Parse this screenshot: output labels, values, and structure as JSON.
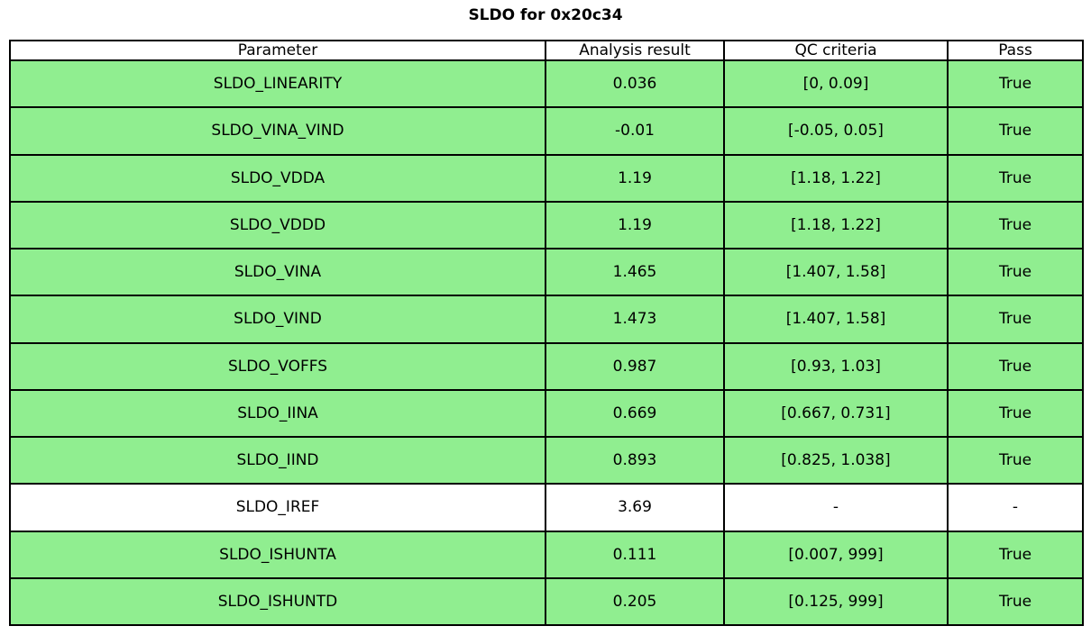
{
  "title": "SLDO for 0x20c34",
  "colors": {
    "pass_green": "#90EE90",
    "border": "#000000",
    "text": "#000000",
    "background": "#ffffff"
  },
  "chart_data": {
    "type": "table",
    "title": "SLDO for 0x20c34",
    "columns": [
      "Parameter",
      "Analysis result",
      "QC criteria",
      "Pass"
    ],
    "rows": [
      {
        "cells": [
          "SLDO_LINEARITY",
          "0.036",
          "[0, 0.09]",
          "True"
        ],
        "highlighted": true
      },
      {
        "cells": [
          "SLDO_VINA_VIND",
          "-0.01",
          "[-0.05, 0.05]",
          "True"
        ],
        "highlighted": true
      },
      {
        "cells": [
          "SLDO_VDDA",
          "1.19",
          "[1.18, 1.22]",
          "True"
        ],
        "highlighted": true
      },
      {
        "cells": [
          "SLDO_VDDD",
          "1.19",
          "[1.18, 1.22]",
          "True"
        ],
        "highlighted": true
      },
      {
        "cells": [
          "SLDO_VINA",
          "1.465",
          "[1.407, 1.58]",
          "True"
        ],
        "highlighted": true
      },
      {
        "cells": [
          "SLDO_VIND",
          "1.473",
          "[1.407, 1.58]",
          "True"
        ],
        "highlighted": true
      },
      {
        "cells": [
          "SLDO_VOFFS",
          "0.987",
          "[0.93, 1.03]",
          "True"
        ],
        "highlighted": true
      },
      {
        "cells": [
          "SLDO_IINA",
          "0.669",
          "[0.667, 0.731]",
          "True"
        ],
        "highlighted": true
      },
      {
        "cells": [
          "SLDO_IIND",
          "0.893",
          "[0.825, 1.038]",
          "True"
        ],
        "highlighted": true
      },
      {
        "cells": [
          "SLDO_IREF",
          "3.69",
          "-",
          "-"
        ],
        "highlighted": false
      },
      {
        "cells": [
          "SLDO_ISHUNTA",
          "0.111",
          "[0.007, 999]",
          "True"
        ],
        "highlighted": true
      },
      {
        "cells": [
          "SLDO_ISHUNTD",
          "0.205",
          "[0.125, 999]",
          "True"
        ],
        "highlighted": true
      }
    ],
    "highlight_color": "#90EE90",
    "layout": {
      "grid": true,
      "header_background": "#ffffff"
    }
  }
}
